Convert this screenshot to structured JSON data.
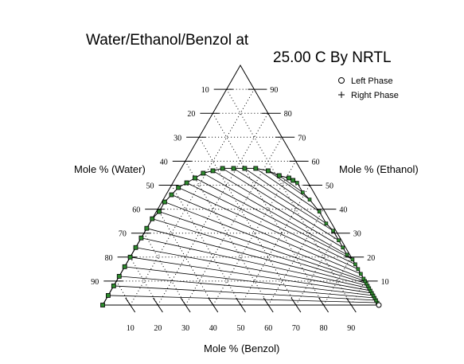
{
  "chart_data": {
    "type": "ternary",
    "title": "Water/Ethanol/Benzol at",
    "title_condition": "25.00 C By NRTL",
    "axes": {
      "left": "Mole % (Water)",
      "right": "Mole % (Ethanol)",
      "bottom": "Mole % (Benzol)"
    },
    "ticks": [
      10,
      20,
      30,
      40,
      50,
      60,
      70,
      80,
      90
    ],
    "tick_labels": [
      "10",
      "20",
      "30",
      "40",
      "50",
      "60",
      "70",
      "80",
      "90"
    ],
    "grid": "dotted",
    "legend": {
      "placement": "top-right",
      "items": [
        {
          "label": "Left Phase",
          "marker": "circle"
        },
        {
          "label": "Right Phase",
          "marker": "plus"
        }
      ]
    },
    "colors": {
      "left_phase_fill": "#2e8b2e",
      "lines": "#000000"
    },
    "tie_lines": [
      {
        "left": {
          "water": 100,
          "benzol": 0
        },
        "right": {
          "water": 0,
          "benzol": 100
        }
      },
      {
        "left": {
          "water": 96,
          "benzol": 0
        },
        "right": {
          "water": 0,
          "benzol": 99
        }
      },
      {
        "left": {
          "water": 92,
          "benzol": 0
        },
        "right": {
          "water": 0,
          "benzol": 98
        }
      },
      {
        "left": {
          "water": 88,
          "benzol": 0
        },
        "right": {
          "water": 0,
          "benzol": 97
        }
      },
      {
        "left": {
          "water": 84,
          "benzol": 0
        },
        "right": {
          "water": 0,
          "benzol": 96
        }
      },
      {
        "left": {
          "water": 80,
          "benzol": 0
        },
        "right": {
          "water": 0,
          "benzol": 95
        }
      },
      {
        "left": {
          "water": 76,
          "benzol": 0
        },
        "right": {
          "water": 0,
          "benzol": 94
        }
      },
      {
        "left": {
          "water": 72,
          "benzol": 0
        },
        "right": {
          "water": 0,
          "benzol": 93
        }
      },
      {
        "left": {
          "water": 68,
          "benzol": 0
        },
        "right": {
          "water": 0,
          "benzol": 92
        }
      },
      {
        "left": {
          "water": 64,
          "benzol": 0
        },
        "right": {
          "water": 0,
          "benzol": 91
        }
      },
      {
        "left": {
          "water": 60,
          "benzol": 1
        },
        "right": {
          "water": 0,
          "benzol": 90
        }
      },
      {
        "left": {
          "water": 56,
          "benzol": 1
        },
        "right": {
          "water": 0,
          "benzol": 89
        }
      },
      {
        "left": {
          "water": 52,
          "benzol": 2
        },
        "right": {
          "water": 0,
          "benzol": 87
        }
      },
      {
        "left": {
          "water": 48,
          "benzol": 3
        },
        "right": {
          "water": 0,
          "benzol": 85
        }
      },
      {
        "left": {
          "water": 44,
          "benzol": 5
        },
        "right": {
          "water": 0,
          "benzol": 83
        }
      },
      {
        "left": {
          "water": 40,
          "benzol": 7
        },
        "right": {
          "water": 0,
          "benzol": 81
        }
      },
      {
        "left": {
          "water": 36,
          "benzol": 9
        },
        "right": {
          "water": 1,
          "benzol": 78
        }
      },
      {
        "left": {
          "water": 32,
          "benzol": 12
        },
        "right": {
          "water": 1,
          "benzol": 75
        }
      },
      {
        "left": {
          "water": 28,
          "benzol": 15
        },
        "right": {
          "water": 1,
          "benzol": 72
        }
      },
      {
        "left": {
          "water": 24,
          "benzol": 19
        },
        "right": {
          "water": 1,
          "benzol": 68
        }
      },
      {
        "left": {
          "water": 20,
          "benzol": 23
        },
        "right": {
          "water": 2,
          "benzol": 64
        }
      },
      {
        "left": {
          "water": 16,
          "benzol": 27
        },
        "right": {
          "water": 2,
          "benzol": 59
        }
      },
      {
        "left": {
          "water": 12,
          "benzol": 32
        },
        "right": {
          "water": 3,
          "benzol": 53
        }
      },
      {
        "left": {
          "water": 9,
          "benzol": 37
        },
        "right": {
          "water": 4,
          "benzol": 49
        }
      },
      {
        "left": {
          "water": 6,
          "benzol": 41
        },
        "right": {
          "water": 4,
          "benzol": 45
        }
      }
    ],
    "plait_point": {
      "water": 5,
      "benzol": 43
    }
  }
}
